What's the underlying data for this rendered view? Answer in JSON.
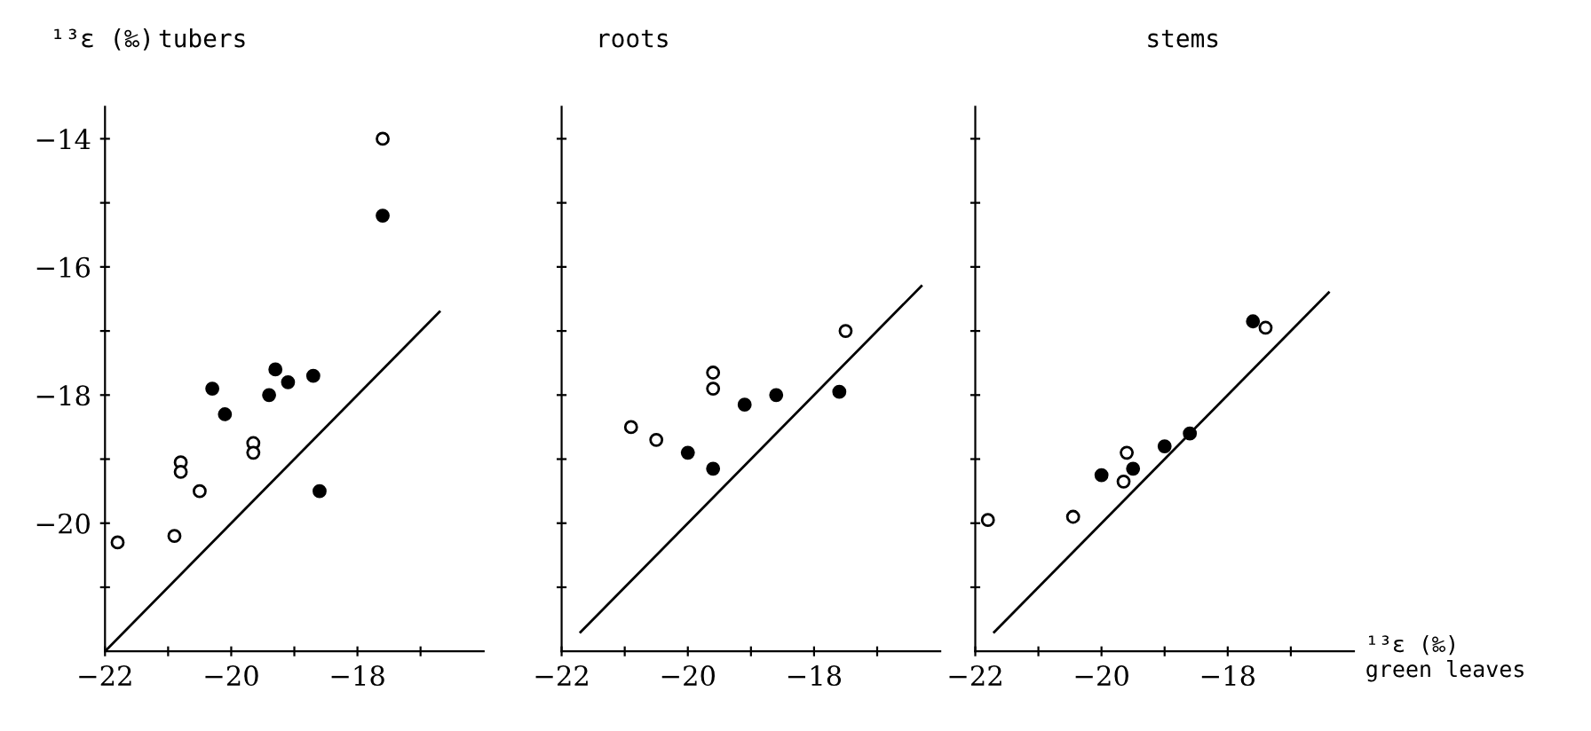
{
  "chart_data": [
    {
      "type": "scatter",
      "title": "tubers",
      "ylabel": "¹³ε (‰)",
      "grid": false,
      "legend": false,
      "xlim": [
        -22,
        -16
      ],
      "ylim": [
        -22,
        -13.5
      ],
      "xticks": [
        -22,
        {
          "value": -21,
          "label": null
        },
        -20,
        {
          "value": -19,
          "label": null
        },
        -18,
        {
          "value": -17,
          "label": null
        }
      ],
      "yticks": [
        {
          "value": -21,
          "label": null
        },
        -20,
        {
          "value": -19,
          "label": null
        },
        -18,
        {
          "value": -17,
          "label": null
        },
        -16,
        {
          "value": -15,
          "label": null
        },
        -14
      ],
      "series": [
        {
          "marker": "circle",
          "color": "#ffffff",
          "x": [
            -17.6,
            -21.8,
            -20.9,
            -20.5,
            -20.8,
            -20.8,
            -19.65,
            -19.65
          ],
          "values": [
            -14.0,
            -20.3,
            -20.2,
            -19.5,
            -19.05,
            -19.2,
            -18.75,
            -18.9
          ]
        },
        {
          "marker": "circle",
          "color": "#000000",
          "x": [
            -17.6,
            -20.3,
            -20.1,
            -19.3,
            -19.4,
            -19.1,
            -18.7,
            -18.6
          ],
          "values": [
            -15.2,
            -17.9,
            -18.3,
            -17.6,
            -18.0,
            -17.8,
            -17.7,
            -19.5
          ]
        },
        {
          "type": "line",
          "color": "#000000",
          "x": [
            -22,
            -16.7
          ],
          "values": [
            -22,
            -16.7
          ]
        }
      ]
    },
    {
      "type": "scatter",
      "title": "roots",
      "grid": false,
      "legend": false,
      "tick_labels": "x",
      "xlim": [
        -22,
        -16
      ],
      "ylim": [
        -22,
        -13.5
      ],
      "xticks": [
        -22,
        {
          "value": -21,
          "label": null
        },
        -20,
        {
          "value": -19,
          "label": null
        },
        -18,
        {
          "value": -17,
          "label": null
        }
      ],
      "yticks": [
        {
          "value": -21,
          "label": null
        },
        {
          "value": -20,
          "label": null
        },
        {
          "value": -19,
          "label": null
        },
        {
          "value": -18,
          "label": null
        },
        {
          "value": -17,
          "label": null
        },
        {
          "value": -16,
          "label": null
        },
        {
          "value": -15,
          "label": null
        },
        {
          "value": -14,
          "label": null
        }
      ],
      "series": [
        {
          "marker": "circle",
          "color": "#ffffff",
          "x": [
            -20.9,
            -20.5,
            -19.6,
            -19.6,
            -17.5
          ],
          "values": [
            -18.5,
            -18.7,
            -17.65,
            -17.9,
            -17.0
          ]
        },
        {
          "marker": "circle",
          "color": "#000000",
          "x": [
            -20.0,
            -19.6,
            -19.1,
            -18.6,
            -17.6
          ],
          "values": [
            -18.9,
            -19.15,
            -18.15,
            -18.0,
            -17.95
          ]
        },
        {
          "type": "line",
          "color": "#000000",
          "x": [
            -21.7,
            -16.3
          ],
          "values": [
            -21.7,
            -16.3
          ]
        }
      ]
    },
    {
      "type": "scatter",
      "title": "stems",
      "xlabel": "¹³ε (‰)\ngreen leaves",
      "grid": false,
      "legend": false,
      "tick_labels": "x",
      "xlim": [
        -22,
        -16
      ],
      "ylim": [
        -22,
        -13.5
      ],
      "xticks": [
        -22,
        {
          "value": -21,
          "label": null
        },
        -20,
        {
          "value": -19,
          "label": null
        },
        -18,
        {
          "value": -17,
          "label": null
        }
      ],
      "yticks": [
        {
          "value": -21,
          "label": null
        },
        {
          "value": -20,
          "label": null
        },
        {
          "value": -19,
          "label": null
        },
        {
          "value": -18,
          "label": null
        },
        {
          "value": -17,
          "label": null
        },
        {
          "value": -16,
          "label": null
        },
        {
          "value": -15,
          "label": null
        },
        {
          "value": -14,
          "label": null
        }
      ],
      "series": [
        {
          "marker": "circle",
          "color": "#ffffff",
          "x": [
            -21.8,
            -20.45,
            -19.65,
            -19.6,
            -17.4
          ],
          "values": [
            -19.95,
            -19.9,
            -19.35,
            -18.9,
            -16.95
          ]
        },
        {
          "marker": "circle",
          "color": "#000000",
          "x": [
            -20.0,
            -19.5,
            -19.0,
            -18.6,
            -17.6
          ],
          "values": [
            -19.25,
            -19.15,
            -18.8,
            -18.6,
            -16.85
          ]
        },
        {
          "type": "line",
          "color": "#000000",
          "x": [
            -21.7,
            -16.4
          ],
          "values": [
            -21.7,
            -16.4
          ]
        }
      ]
    }
  ]
}
